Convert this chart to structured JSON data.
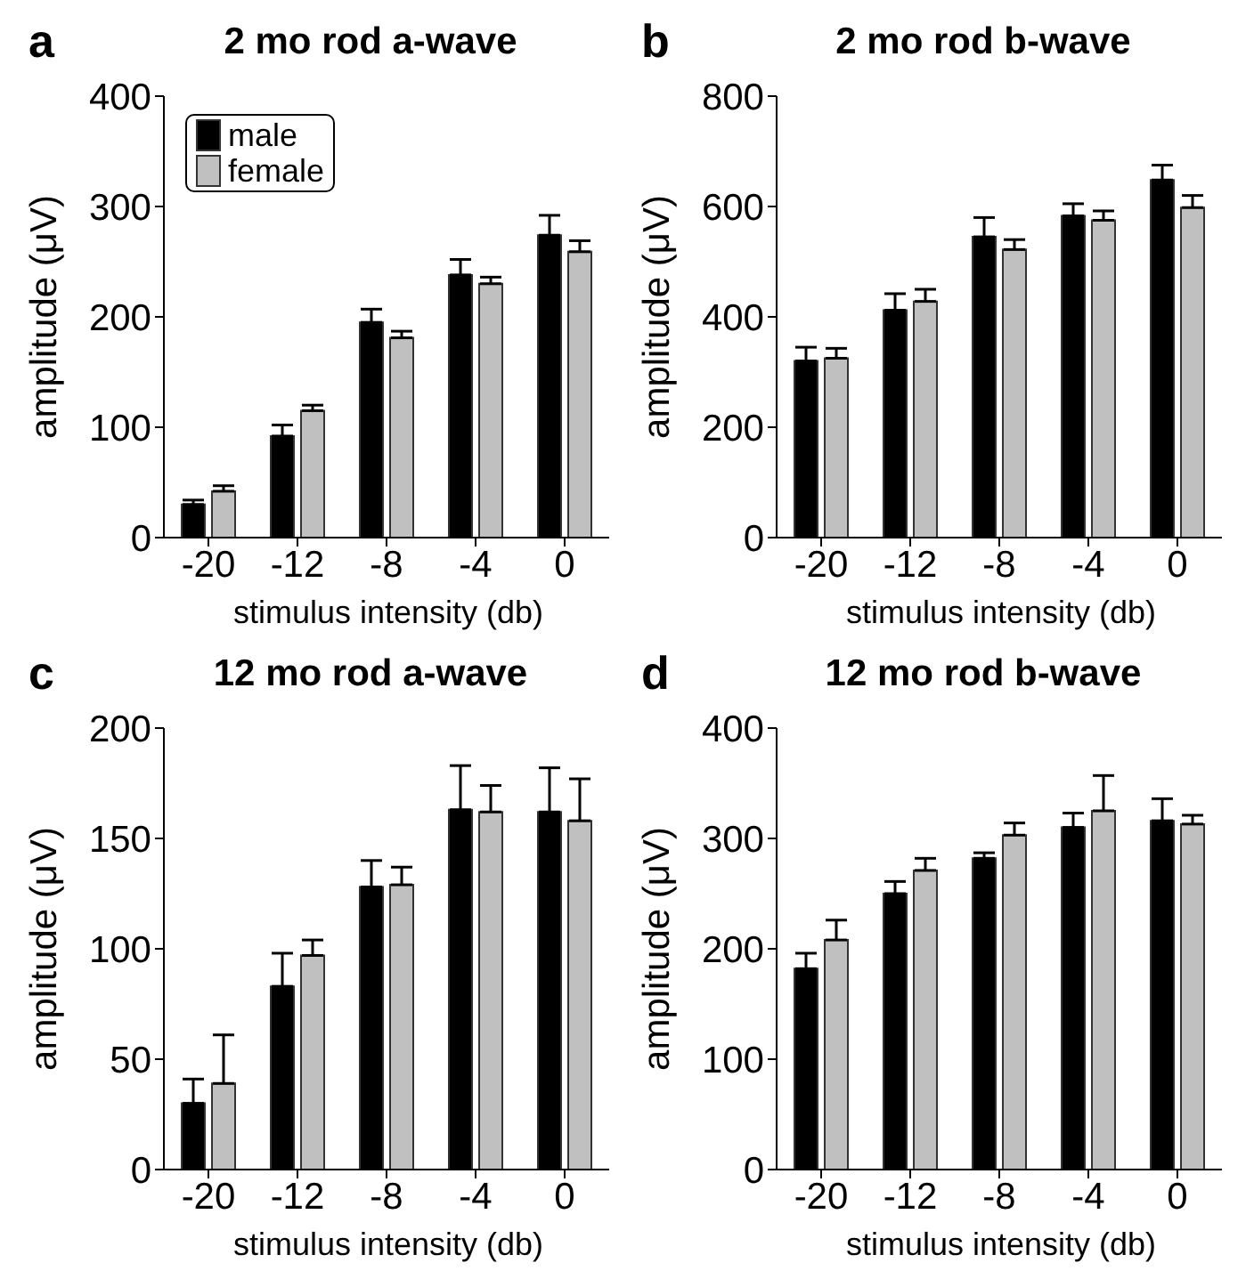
{
  "chart_data": [
    {
      "type": "bar",
      "title": "2 mo rod a-wave",
      "annotations": [
        "a"
      ],
      "xlabel": "stimulus intensity (db)",
      "ylabel": "amplitude (μV)",
      "categories": [
        "-20",
        "-12",
        "-8",
        "-4",
        "0"
      ],
      "ylim": [
        0,
        400
      ],
      "yticks": [
        0,
        100,
        200,
        300,
        400
      ],
      "grid": false,
      "legend": "top left",
      "series": [
        {
          "name": "male",
          "color": "#000000",
          "values": [
            30,
            92,
            195,
            238,
            274
          ],
          "errors": [
            [
              30,
              34
            ],
            [
              92,
              102
            ],
            [
              195,
              207
            ],
            [
              238,
              252
            ],
            [
              274,
              292
            ]
          ]
        },
        {
          "name": "female",
          "color": "#c0c0c0",
          "values": [
            42,
            115,
            181,
            230,
            259
          ],
          "errors": [
            [
              42,
              47
            ],
            [
              115,
              120
            ],
            [
              181,
              187
            ],
            [
              230,
              236
            ],
            [
              259,
              269
            ]
          ]
        }
      ]
    },
    {
      "type": "bar",
      "title": "2 mo rod b-wave",
      "annotations": [
        "b"
      ],
      "xlabel": "stimulus intensity (db)",
      "ylabel": "amplitude (μV)",
      "categories": [
        "-20",
        "-12",
        "-8",
        "-4",
        "0"
      ],
      "ylim": [
        0,
        800
      ],
      "yticks": [
        0,
        200,
        400,
        600,
        800
      ],
      "grid": false,
      "series": [
        {
          "color": "#000000",
          "values": [
            320,
            412,
            545,
            583,
            648
          ],
          "errors": [
            [
              320,
              345
            ],
            [
              412,
              442
            ],
            [
              545,
              580
            ],
            [
              583,
              605
            ],
            [
              648,
              675
            ]
          ]
        },
        {
          "color": "#c0c0c0",
          "values": [
            325,
            428,
            522,
            575,
            598
          ],
          "errors": [
            [
              325,
              343
            ],
            [
              428,
              450
            ],
            [
              522,
              540
            ],
            [
              575,
              592
            ],
            [
              598,
              620
            ]
          ]
        }
      ]
    },
    {
      "type": "bar",
      "title": "12 mo rod a-wave",
      "annotations": [
        "c"
      ],
      "xlabel": "stimulus intensity (db)",
      "ylabel": "amplitude (μV)",
      "categories": [
        "-20",
        "-12",
        "-8",
        "-4",
        "0"
      ],
      "ylim": [
        0,
        200
      ],
      "yticks": [
        0,
        50,
        100,
        150,
        200
      ],
      "grid": false,
      "series": [
        {
          "color": "#000000",
          "values": [
            30,
            83,
            128,
            163,
            162
          ],
          "errors": [
            [
              30,
              41
            ],
            [
              83,
              98
            ],
            [
              128,
              140
            ],
            [
              163,
              183
            ],
            [
              162,
              182
            ]
          ]
        },
        {
          "color": "#c0c0c0",
          "values": [
            39,
            97,
            129,
            162,
            158
          ],
          "errors": [
            [
              39,
              61
            ],
            [
              97,
              104
            ],
            [
              129,
              137
            ],
            [
              162,
              174
            ],
            [
              158,
              177
            ]
          ]
        }
      ]
    },
    {
      "type": "bar",
      "title": "12 mo rod b-wave",
      "annotations": [
        "d"
      ],
      "xlabel": "stimulus intensity (db)",
      "ylabel": "amplitude (μV)",
      "categories": [
        "-20",
        "-12",
        "-8",
        "-4",
        "0"
      ],
      "ylim": [
        0,
        400
      ],
      "yticks": [
        0,
        100,
        200,
        300,
        400
      ],
      "grid": false,
      "series": [
        {
          "color": "#000000",
          "values": [
            182,
            250,
            282,
            310,
            316
          ],
          "errors": [
            [
              182,
              196
            ],
            [
              250,
              261
            ],
            [
              282,
              287
            ],
            [
              310,
              323
            ],
            [
              316,
              336
            ]
          ]
        },
        {
          "color": "#c0c0c0",
          "values": [
            208,
            271,
            303,
            325,
            313
          ],
          "errors": [
            [
              208,
              226
            ],
            [
              271,
              282
            ],
            [
              303,
              314
            ],
            [
              325,
              357
            ],
            [
              313,
              321
            ]
          ]
        }
      ]
    }
  ]
}
